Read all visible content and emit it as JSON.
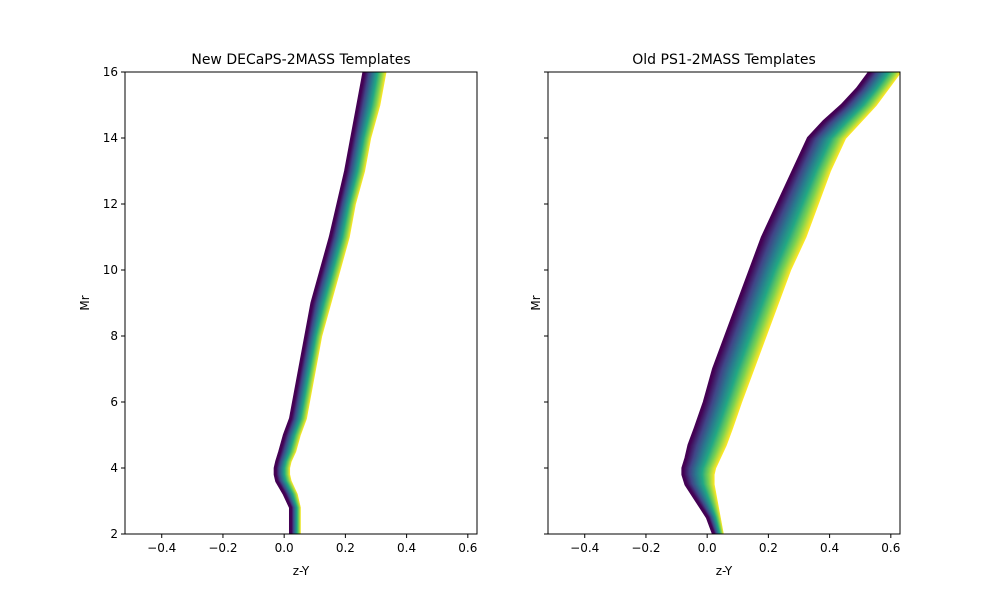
{
  "chart_data": [
    {
      "type": "line",
      "title": "New DECaPS-2MASS Templates",
      "xlabel": "z-Y",
      "ylabel": "Mr",
      "xlim": [
        -0.52,
        0.63
      ],
      "ylim": [
        2,
        16
      ],
      "xticks": [
        -0.4,
        -0.2,
        0.0,
        0.2,
        0.4,
        0.6
      ],
      "yticks": [
        2,
        4,
        6,
        8,
        10,
        12,
        14,
        16
      ],
      "xtick_labels": [
        "−0.4",
        "−0.2",
        "0.0",
        "0.2",
        "0.4",
        "0.6"
      ],
      "ytick_labels": [
        "2",
        "4",
        "6",
        "8",
        "10",
        "12",
        "14",
        "16"
      ],
      "ytick_labels_visible": true,
      "colormap": "viridis",
      "colormap_colors": [
        "#440154",
        "#414487",
        "#2a788e",
        "#22a884",
        "#7ad151",
        "#fde725"
      ],
      "band": {
        "y": [
          2.0,
          2.8,
          3.2,
          3.6,
          3.8,
          4.0,
          4.2,
          4.5,
          5.0,
          5.5,
          6.0,
          7.0,
          8.0,
          9.0,
          10.0,
          11.0,
          12.0,
          13.0,
          14.0,
          15.0,
          16.0
        ],
        "x_blue": [
          0.02,
          0.02,
          0.0,
          -0.025,
          -0.03,
          -0.03,
          -0.025,
          -0.015,
          0.0,
          0.02,
          0.03,
          0.05,
          0.07,
          0.09,
          0.12,
          0.15,
          0.175,
          0.2,
          0.22,
          0.24,
          0.26
        ],
        "x_yellow": [
          0.05,
          0.05,
          0.04,
          0.02,
          0.015,
          0.015,
          0.02,
          0.035,
          0.05,
          0.07,
          0.08,
          0.1,
          0.12,
          0.15,
          0.18,
          0.21,
          0.23,
          0.26,
          0.28,
          0.31,
          0.33
        ]
      }
    },
    {
      "type": "line",
      "title": "Old PS1-2MASS Templates",
      "xlabel": "z-Y",
      "ylabel": "Mr",
      "xlim": [
        -0.52,
        0.63
      ],
      "ylim": [
        2,
        16
      ],
      "xticks": [
        -0.4,
        -0.2,
        0.0,
        0.2,
        0.4,
        0.6
      ],
      "yticks": [
        2,
        4,
        6,
        8,
        10,
        12,
        14,
        16
      ],
      "xtick_labels": [
        "−0.4",
        "−0.2",
        "0.0",
        "0.2",
        "0.4",
        "0.6"
      ],
      "ytick_labels": [],
      "ytick_labels_visible": false,
      "colormap": "viridis",
      "colormap_colors": [
        "#440154",
        "#414487",
        "#2a788e",
        "#22a884",
        "#7ad151",
        "#fde725"
      ],
      "band": {
        "y": [
          2.0,
          2.5,
          3.0,
          3.5,
          3.8,
          4.0,
          4.3,
          4.7,
          5.2,
          6.0,
          7.0,
          8.0,
          9.0,
          10.0,
          11.0,
          12.0,
          13.0,
          14.0,
          14.5,
          15.0,
          15.5,
          16.0
        ],
        "x_blue": [
          0.02,
          0.0,
          -0.035,
          -0.07,
          -0.08,
          -0.08,
          -0.07,
          -0.06,
          -0.04,
          -0.01,
          0.02,
          0.06,
          0.1,
          0.14,
          0.18,
          0.23,
          0.28,
          0.33,
          0.38,
          0.44,
          0.49,
          0.53
        ],
        "x_yellow": [
          0.05,
          0.04,
          0.03,
          0.02,
          0.02,
          0.025,
          0.04,
          0.06,
          0.08,
          0.11,
          0.15,
          0.19,
          0.23,
          0.27,
          0.32,
          0.36,
          0.4,
          0.45,
          0.5,
          0.55,
          0.59,
          0.63
        ]
      }
    }
  ]
}
